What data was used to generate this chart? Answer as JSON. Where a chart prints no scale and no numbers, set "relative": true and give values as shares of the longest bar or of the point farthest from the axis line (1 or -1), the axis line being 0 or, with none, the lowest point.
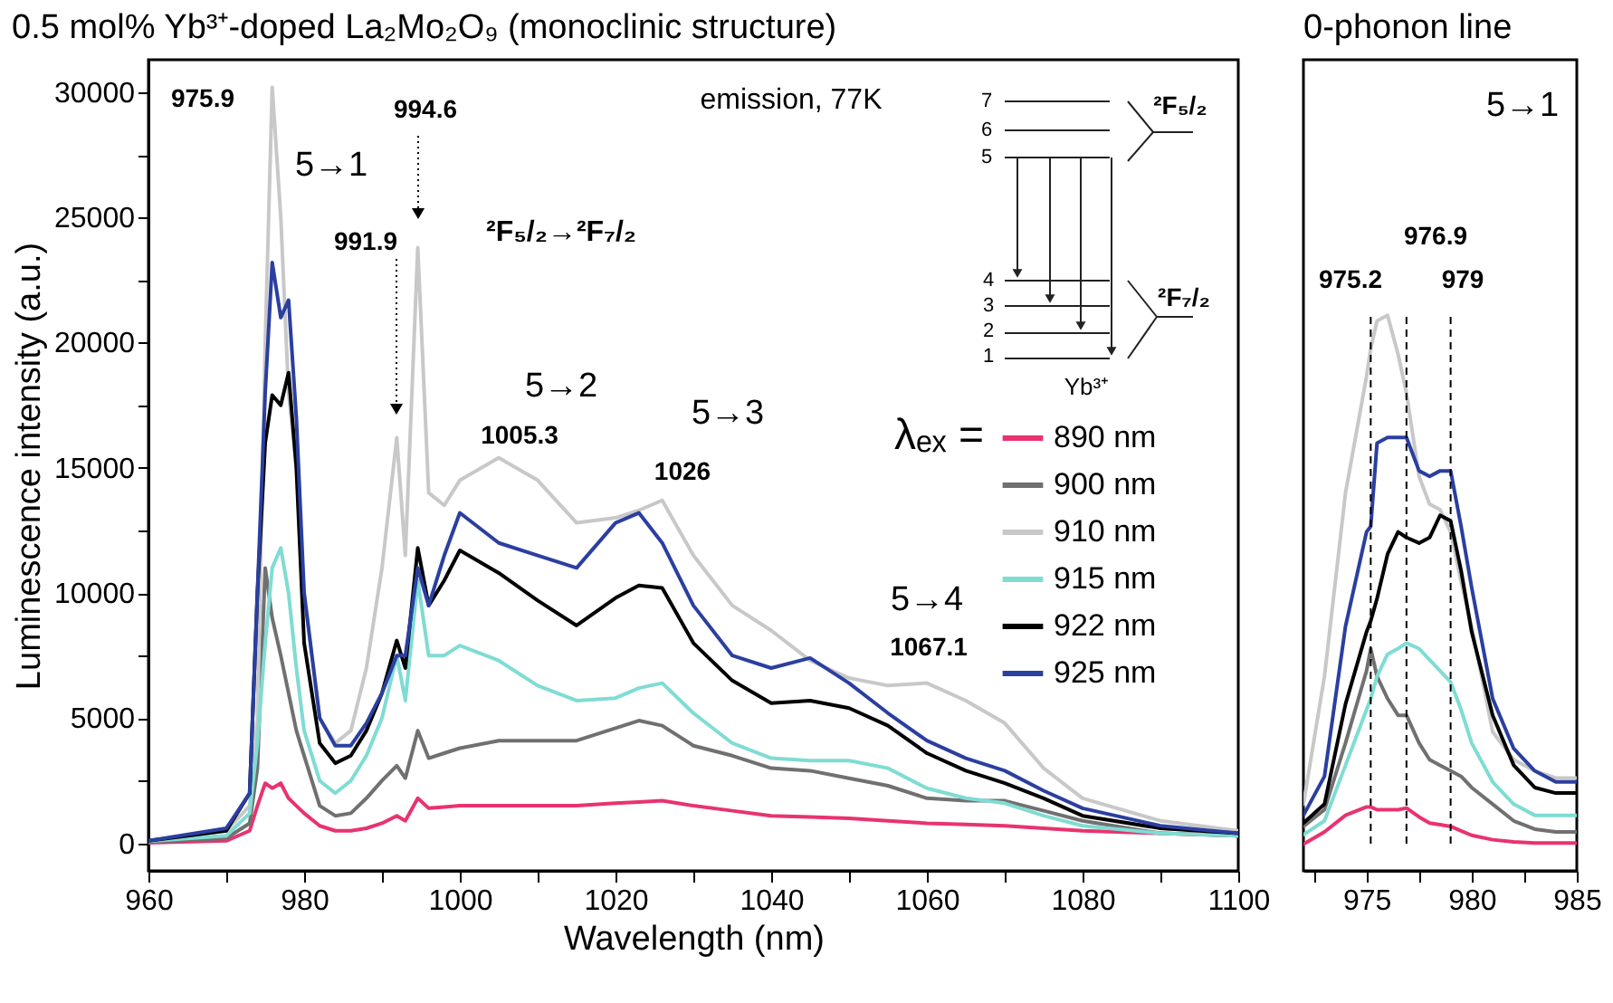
{
  "chart_data": [
    {
      "type": "line",
      "title": "0.5 mol% Yb³⁺-doped La₂Mo₂O₉  (monoclinic structure)",
      "xlabel": "Wavelength (nm)",
      "ylabel": "Luminescence intensity (a.u.)",
      "legend_title": "λₑₓ =",
      "legend": "right",
      "grid": false,
      "xlim": [
        960,
        1100
      ],
      "xticks": [
        960,
        {
          "value": 970,
          "label": null
        },
        980,
        {
          "value": 990,
          "label": null
        },
        1000,
        {
          "value": 1010,
          "label": null
        },
        1020,
        {
          "value": 1030,
          "label": null
        },
        1040,
        {
          "value": 1050,
          "label": null
        },
        1060,
        {
          "value": 1070,
          "label": null
        },
        1080,
        {
          "value": 1090,
          "label": null
        },
        1100
      ],
      "ylim": [
        -1100,
        31300
      ],
      "yticks": [
        0,
        {
          "value": 2500,
          "label": null
        },
        5000,
        {
          "value": 7500,
          "label": null
        },
        10000,
        {
          "value": 12500,
          "label": null
        },
        15000,
        {
          "value": 17500,
          "label": null
        },
        20000,
        {
          "value": 22500,
          "label": null
        },
        25000,
        {
          "value": 27500,
          "label": null
        },
        30000
      ],
      "x": [
        960,
        970,
        973,
        974,
        975,
        975.9,
        977,
        978,
        979,
        980,
        982,
        984,
        986,
        988,
        990,
        991.9,
        993,
        994.6,
        996,
        998,
        1000,
        1005,
        1010,
        1015,
        1020,
        1023,
        1026,
        1030,
        1035,
        1040,
        1045,
        1050,
        1055,
        1060,
        1065,
        1070,
        1075,
        1080,
        1090,
        1100
      ],
      "series": [
        {
          "name": "890 nm",
          "color": "#e8336f",
          "values": [
            20,
            100,
            500,
            1500,
            2400,
            2200,
            2400,
            1800,
            1500,
            1200,
            700,
            500,
            500,
            600,
            800,
            1100,
            900,
            1800,
            1400,
            1450,
            1500,
            1500,
            1500,
            1500,
            1600,
            1650,
            1700,
            1500,
            1300,
            1100,
            1050,
            1000,
            900,
            800,
            750,
            700,
            600,
            500,
            400,
            300
          ]
        },
        {
          "name": "900 nm",
          "color": "#707070",
          "values": [
            50,
            200,
            800,
            3000,
            11000,
            9000,
            7500,
            6000,
            4500,
            3500,
            1500,
            1100,
            1200,
            1800,
            2500,
            3100,
            2600,
            4500,
            3400,
            3600,
            3800,
            4100,
            4100,
            4100,
            4600,
            4900,
            4700,
            3900,
            3500,
            3000,
            2900,
            2600,
            2300,
            1800,
            1700,
            1700,
            1300,
            900,
            400,
            300
          ]
        },
        {
          "name": "910 nm",
          "color": "#c8c8c8",
          "values": [
            100,
            500,
            1500,
            5000,
            20000,
            30200,
            25000,
            18000,
            15000,
            10000,
            5000,
            4000,
            4500,
            7000,
            11000,
            16200,
            11500,
            23800,
            14000,
            13500,
            14500,
            15400,
            14500,
            12800,
            13000,
            13300,
            13700,
            11500,
            9500,
            8500,
            7300,
            6600,
            6300,
            6400,
            5700,
            4800,
            3000,
            1800,
            900,
            500
          ]
        },
        {
          "name": "915 nm",
          "color": "#7fdcd3",
          "values": [
            80,
            300,
            1200,
            4000,
            8000,
            11000,
            11800,
            10000,
            7000,
            4500,
            2500,
            2000,
            2500,
            3500,
            5000,
            7500,
            5700,
            10500,
            7500,
            7500,
            7900,
            7300,
            6300,
            5700,
            5800,
            6200,
            6400,
            5200,
            4000,
            3400,
            3300,
            3300,
            3000,
            2200,
            1800,
            1600,
            1100,
            700,
            400,
            300
          ]
        },
        {
          "name": "922 nm",
          "color": "#000000",
          "values": [
            100,
            500,
            2000,
            10000,
            16000,
            17900,
            17500,
            18800,
            15000,
            8000,
            4000,
            3200,
            3500,
            4500,
            6000,
            8100,
            7000,
            11800,
            9500,
            10500,
            11700,
            10800,
            9700,
            8700,
            9800,
            10300,
            10200,
            8000,
            6500,
            5600,
            5700,
            5400,
            4700,
            3600,
            2900,
            2400,
            1800,
            1100,
            600,
            400
          ]
        },
        {
          "name": "925 nm",
          "color": "#2b3fa0",
          "values": [
            100,
            600,
            2000,
            10000,
            18000,
            23200,
            21000,
            21700,
            17000,
            10000,
            5000,
            3900,
            3900,
            4800,
            6000,
            7500,
            7500,
            11000,
            9500,
            11500,
            13200,
            12000,
            11500,
            11000,
            12800,
            13200,
            12000,
            9500,
            7500,
            7000,
            7400,
            6400,
            5200,
            4100,
            3400,
            2900,
            2100,
            1400,
            700,
            400
          ]
        }
      ],
      "annotations": [
        "975.9",
        "5→1",
        "994.6",
        "991.9",
        "²F₅/₂→²F₇/₂",
        "5→2",
        "1005.3",
        "5→3",
        "1026",
        "5→4",
        "1067.1",
        "emission, 77K",
        "7",
        "6",
        "5",
        "4",
        "3",
        "2",
        "1",
        "²F₅/₂",
        "²F₇/₂",
        "Yb³⁺"
      ]
    },
    {
      "type": "line",
      "title": "0-phonon line",
      "relative": true,
      "grid": false,
      "xlim": [
        972,
        985
      ],
      "xticks": [
        {
          "value": 972.5,
          "label": null
        },
        975,
        {
          "value": 977.5,
          "label": null
        },
        980,
        {
          "value": 982.5,
          "label": null
        },
        985
      ],
      "x": [
        972,
        973,
        974,
        975,
        975.2,
        975.5,
        976,
        976.5,
        976.9,
        977.5,
        978,
        978.5,
        979,
        979.5,
        980,
        981,
        982,
        983,
        984,
        985
      ],
      "series": [
        {
          "color": "#e8336f",
          "values": [
            0.048,
            0.07,
            0.1,
            0.115,
            0.115,
            0.11,
            0.11,
            0.11,
            0.113,
            0.097,
            0.086,
            0.083,
            0.08,
            0.072,
            0.064,
            0.056,
            0.052,
            0.05,
            0.05,
            0.05
          ]
        },
        {
          "color": "#707070",
          "values": [
            0.08,
            0.11,
            0.23,
            0.36,
            0.4,
            0.35,
            0.31,
            0.28,
            0.28,
            0.23,
            0.2,
            0.19,
            0.18,
            0.17,
            0.15,
            0.12,
            0.09,
            0.075,
            0.07,
            0.07
          ]
        },
        {
          "color": "#c8c8c8",
          "values": [
            0.12,
            0.35,
            0.68,
            0.89,
            0.94,
            0.99,
            1.0,
            0.93,
            0.86,
            0.71,
            0.66,
            0.65,
            0.61,
            0.52,
            0.44,
            0.25,
            0.2,
            0.18,
            0.167,
            0.167
          ]
        },
        {
          "color": "#7fdcd3",
          "values": [
            0.065,
            0.09,
            0.19,
            0.29,
            0.31,
            0.35,
            0.39,
            0.4,
            0.41,
            0.4,
            0.38,
            0.36,
            0.34,
            0.29,
            0.23,
            0.16,
            0.12,
            0.1,
            0.1,
            0.1
          ]
        },
        {
          "color": "#000000",
          "values": [
            0.086,
            0.12,
            0.3,
            0.43,
            0.45,
            0.49,
            0.57,
            0.61,
            0.6,
            0.59,
            0.6,
            0.64,
            0.63,
            0.54,
            0.43,
            0.28,
            0.19,
            0.15,
            0.14,
            0.14
          ]
        },
        {
          "color": "#2b3fa0",
          "values": [
            0.1,
            0.17,
            0.44,
            0.61,
            0.62,
            0.77,
            0.78,
            0.78,
            0.78,
            0.72,
            0.71,
            0.72,
            0.72,
            0.62,
            0.51,
            0.31,
            0.22,
            0.18,
            0.16,
            0.16
          ]
        }
      ],
      "ref_lines": [
        {
          "axis": "x",
          "value": 975.2,
          "line_style": "dashed"
        },
        {
          "axis": "x",
          "value": 976.9,
          "line_style": "dashed"
        },
        {
          "axis": "x",
          "value": 979,
          "line_style": "dashed"
        }
      ],
      "annotations": [
        "975.2",
        "976.9",
        "979",
        "5→1"
      ]
    }
  ]
}
